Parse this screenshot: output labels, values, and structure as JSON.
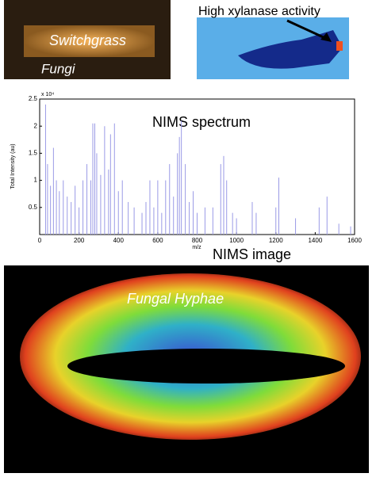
{
  "panels": {
    "photo": {
      "sample": "Switchgrass",
      "organism": "Fungi"
    },
    "stain": {
      "caption": "High xylanase activity"
    },
    "image": {
      "title": "NIMS image",
      "label": "Fungal Hyphae"
    }
  },
  "chart_data": {
    "type": "stem",
    "title": "NIMS spectrum",
    "x_label": "m/z",
    "y_label": "Total Intensity (au)",
    "y_multiplier": "x 10⁴",
    "color": "#9a9ae6",
    "x": [
      30,
      40,
      55,
      70,
      85,
      100,
      120,
      140,
      160,
      180,
      200,
      220,
      240,
      260,
      270,
      280,
      290,
      310,
      330,
      350,
      360,
      380,
      400,
      420,
      450,
      480,
      520,
      540,
      560,
      580,
      600,
      620,
      640,
      660,
      680,
      700,
      710,
      720,
      740,
      760,
      780,
      800,
      840,
      880,
      920,
      935,
      950,
      980,
      1000,
      1080,
      1100,
      1200,
      1215,
      1300,
      1420,
      1460,
      1520,
      1580
    ],
    "values": [
      2.4,
      1.3,
      0.9,
      1.6,
      1.0,
      0.8,
      1.0,
      0.7,
      0.6,
      0.9,
      0.5,
      1.0,
      1.3,
      1.0,
      2.05,
      2.05,
      1.5,
      1.1,
      2.0,
      1.2,
      1.85,
      2.05,
      0.8,
      1.0,
      0.6,
      0.5,
      0.4,
      0.6,
      1.0,
      0.5,
      1.0,
      0.4,
      1.0,
      1.3,
      0.7,
      1.5,
      1.8,
      2.1,
      1.3,
      0.6,
      0.8,
      0.4,
      0.5,
      0.5,
      1.3,
      1.45,
      1.0,
      0.4,
      0.3,
      0.6,
      0.4,
      0.5,
      1.05,
      0.3,
      0.5,
      0.7,
      0.2,
      0.15
    ],
    "xlim": [
      0,
      1600
    ],
    "xticks": [
      0,
      200,
      400,
      600,
      800,
      1000,
      1200,
      1400,
      1600
    ],
    "ylim": [
      0,
      2.5
    ],
    "yticks": [
      0.5,
      1,
      1.5,
      2,
      2.5
    ]
  }
}
